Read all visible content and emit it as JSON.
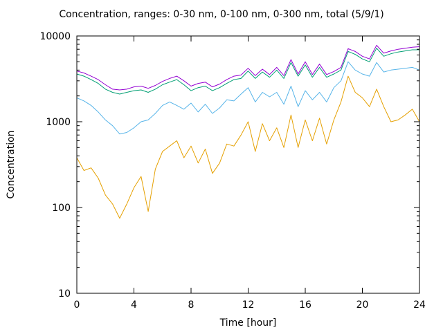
{
  "chart_data": {
    "type": "line",
    "title": "Concentration, ranges: 0-30 nm, 0-100 nm, 0-300 nm, total (5/9/1)",
    "xlabel": "Time [hour]",
    "ylabel": "Concentration",
    "xlim": [
      0,
      24
    ],
    "ylim": [
      10,
      10000
    ],
    "yscale": "log",
    "grid": false,
    "x_ticks": [
      0,
      4,
      8,
      12,
      16,
      20,
      24
    ],
    "y_ticks": [
      10,
      100,
      1000,
      10000
    ],
    "x_tick_labels": [
      "0",
      "4",
      "8",
      "12",
      "16",
      "20",
      "24"
    ],
    "y_tick_labels": [
      "10",
      "100",
      "1000",
      "10000"
    ],
    "x": [
      0,
      0.5,
      1,
      1.5,
      2,
      2.5,
      3,
      3.5,
      4,
      4.5,
      5,
      5.5,
      6,
      6.5,
      7,
      7.5,
      8,
      8.5,
      9,
      9.5,
      10,
      10.5,
      11,
      11.5,
      12,
      12.5,
      13,
      13.5,
      14,
      14.5,
      15,
      15.5,
      16,
      16.5,
      17,
      17.5,
      18,
      18.5,
      19,
      19.5,
      20,
      20.5,
      21,
      21.5,
      22,
      22.5,
      23,
      23.5,
      24
    ],
    "series": [
      {
        "color": "#e5a000",
        "values": [
          380,
          270,
          290,
          220,
          140,
          110,
          75,
          110,
          170,
          230,
          90,
          280,
          450,
          520,
          600,
          380,
          520,
          330,
          480,
          250,
          330,
          550,
          520,
          700,
          1000,
          450,
          950,
          600,
          850,
          500,
          1200,
          500,
          1050,
          600,
          1100,
          550,
          1050,
          1700,
          3400,
          2200,
          1900,
          1500,
          2400,
          1500,
          1000,
          1050,
          1200,
          1400,
          1000
        ]
      },
      {
        "color": "#56b4e9",
        "values": [
          1900,
          1750,
          1550,
          1300,
          1050,
          900,
          720,
          750,
          850,
          1000,
          1050,
          1250,
          1550,
          1700,
          1550,
          1400,
          1650,
          1300,
          1600,
          1250,
          1450,
          1800,
          1750,
          2100,
          2500,
          1700,
          2200,
          1950,
          2200,
          1600,
          2600,
          1500,
          2300,
          1800,
          2200,
          1700,
          2500,
          3000,
          5000,
          4000,
          3600,
          3400,
          4900,
          3800,
          4000,
          4100,
          4200,
          4300,
          4000
        ]
      },
      {
        "color": "#009e73",
        "values": [
          3600,
          3400,
          3100,
          2800,
          2400,
          2200,
          2100,
          2200,
          2300,
          2350,
          2200,
          2400,
          2700,
          2900,
          3100,
          2700,
          2300,
          2500,
          2600,
          2300,
          2500,
          2800,
          3100,
          3200,
          3900,
          3200,
          3800,
          3300,
          4000,
          3200,
          4900,
          3400,
          4600,
          3300,
          4300,
          3300,
          3600,
          4000,
          6600,
          6100,
          5400,
          5000,
          7200,
          5800,
          6200,
          6500,
          6700,
          6900,
          6900
        ]
      },
      {
        "color": "#9400d3",
        "values": [
          3900,
          3700,
          3400,
          3100,
          2700,
          2400,
          2350,
          2400,
          2550,
          2600,
          2450,
          2650,
          2950,
          3200,
          3400,
          3000,
          2600,
          2800,
          2900,
          2550,
          2750,
          3100,
          3400,
          3500,
          4200,
          3450,
          4100,
          3550,
          4300,
          3450,
          5300,
          3600,
          5000,
          3550,
          4700,
          3550,
          3850,
          4300,
          7100,
          6600,
          5800,
          5400,
          7800,
          6300,
          6700,
          7000,
          7200,
          7400,
          7500
        ]
      }
    ]
  }
}
